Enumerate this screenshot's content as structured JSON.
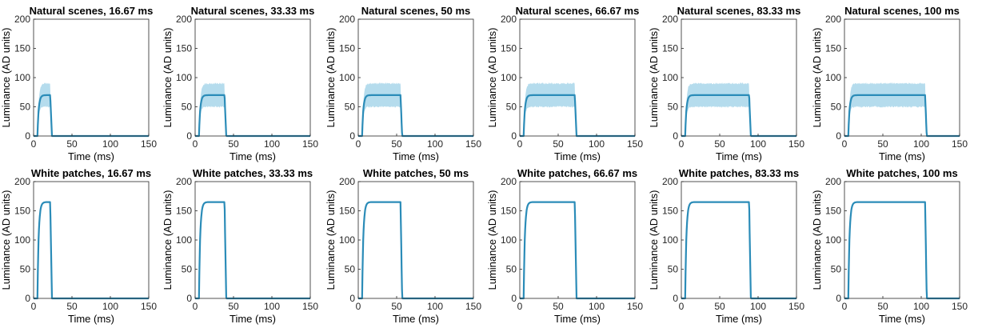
{
  "colors": {
    "line": "#2b8cb8",
    "band": "#a8d6ea",
    "axis": "#262626"
  },
  "chart_data": [
    {
      "type": "line",
      "title": "Natural scenes, 16.67 ms",
      "xlabel": "Time (ms)",
      "ylabel": "Luminance (AD units)",
      "xlim": [
        0,
        150
      ],
      "ylim": [
        0,
        200
      ],
      "xticks": [
        "0",
        "50",
        "100",
        "150"
      ],
      "yticks": [
        "0",
        "50",
        "100",
        "150",
        "200"
      ],
      "grid": false,
      "onset": 5,
      "duration": 16.67,
      "plateau": 70,
      "band": [
        50,
        90
      ],
      "shaded_band": true
    },
    {
      "type": "line",
      "title": "Natural scenes, 33.33 ms",
      "xlabel": "Time (ms)",
      "ylabel": "Luminance (AD units)",
      "xlim": [
        0,
        150
      ],
      "ylim": [
        0,
        200
      ],
      "xticks": [
        "0",
        "50",
        "100",
        "150"
      ],
      "yticks": [
        "0",
        "50",
        "100",
        "150",
        "200"
      ],
      "grid": false,
      "onset": 5,
      "duration": 33.33,
      "plateau": 70,
      "band": [
        50,
        90
      ],
      "shaded_band": true
    },
    {
      "type": "line",
      "title": "Natural scenes, 50 ms",
      "xlabel": "Time (ms)",
      "ylabel": "Luminance (AD units)",
      "xlim": [
        0,
        150
      ],
      "ylim": [
        0,
        200
      ],
      "xticks": [
        "0",
        "50",
        "100",
        "150"
      ],
      "yticks": [
        "0",
        "50",
        "100",
        "150",
        "200"
      ],
      "grid": false,
      "onset": 5,
      "duration": 50,
      "plateau": 70,
      "band": [
        50,
        90
      ],
      "shaded_band": true
    },
    {
      "type": "line",
      "title": "Natural scenes, 66.67 ms",
      "xlabel": "Time (ms)",
      "ylabel": "Luminance (AD units)",
      "xlim": [
        0,
        150
      ],
      "ylim": [
        0,
        200
      ],
      "xticks": [
        "0",
        "50",
        "100",
        "150"
      ],
      "yticks": [
        "0",
        "50",
        "100",
        "150",
        "200"
      ],
      "grid": false,
      "onset": 5,
      "duration": 66.67,
      "plateau": 70,
      "band": [
        50,
        90
      ],
      "shaded_band": true
    },
    {
      "type": "line",
      "title": "Natural scenes, 83.33 ms",
      "xlabel": "Time (ms)",
      "ylabel": "Luminance (AD units)",
      "xlim": [
        0,
        150
      ],
      "ylim": [
        0,
        200
      ],
      "xticks": [
        "0",
        "50",
        "100",
        "150"
      ],
      "yticks": [
        "0",
        "50",
        "100",
        "150",
        "200"
      ],
      "grid": false,
      "onset": 5,
      "duration": 83.33,
      "plateau": 70,
      "band": [
        50,
        90
      ],
      "shaded_band": true
    },
    {
      "type": "line",
      "title": "Natural scenes, 100 ms",
      "xlabel": "Time (ms)",
      "ylabel": "Luminance (AD units)",
      "xlim": [
        0,
        150
      ],
      "ylim": [
        0,
        200
      ],
      "xticks": [
        "0",
        "50",
        "100",
        "150"
      ],
      "yticks": [
        "0",
        "50",
        "100",
        "150",
        "200"
      ],
      "grid": false,
      "onset": 5,
      "duration": 100,
      "plateau": 70,
      "band": [
        50,
        90
      ],
      "shaded_band": true
    },
    {
      "type": "line",
      "title": "White patches, 16.67 ms",
      "xlabel": "Time (ms)",
      "ylabel": "Luminance (AD units)",
      "xlim": [
        0,
        150
      ],
      "ylim": [
        0,
        200
      ],
      "xticks": [
        "0",
        "50",
        "100",
        "150"
      ],
      "yticks": [
        "0",
        "50",
        "100",
        "150",
        "200"
      ],
      "grid": false,
      "onset": 5,
      "duration": 16.67,
      "plateau": 165,
      "shaded_band": false
    },
    {
      "type": "line",
      "title": "White patches, 33.33 ms",
      "xlabel": "Time (ms)",
      "ylabel": "Luminance (AD units)",
      "xlim": [
        0,
        150
      ],
      "ylim": [
        0,
        200
      ],
      "xticks": [
        "0",
        "50",
        "100",
        "150"
      ],
      "yticks": [
        "0",
        "50",
        "100",
        "150",
        "200"
      ],
      "grid": false,
      "onset": 5,
      "duration": 33.33,
      "plateau": 165,
      "shaded_band": false
    },
    {
      "type": "line",
      "title": "White patches, 50 ms",
      "xlabel": "Time (ms)",
      "ylabel": "Luminance (AD units)",
      "xlim": [
        0,
        150
      ],
      "ylim": [
        0,
        200
      ],
      "xticks": [
        "0",
        "50",
        "100",
        "150"
      ],
      "yticks": [
        "0",
        "50",
        "100",
        "150",
        "200"
      ],
      "grid": false,
      "onset": 5,
      "duration": 50,
      "plateau": 165,
      "shaded_band": false
    },
    {
      "type": "line",
      "title": "White patches, 66.67 ms",
      "xlabel": "Time (ms)",
      "ylabel": "Luminance (AD units)",
      "xlim": [
        0,
        150
      ],
      "ylim": [
        0,
        200
      ],
      "xticks": [
        "0",
        "50",
        "100",
        "150"
      ],
      "yticks": [
        "0",
        "50",
        "100",
        "150",
        "200"
      ],
      "grid": false,
      "onset": 5,
      "duration": 66.67,
      "plateau": 165,
      "shaded_band": false
    },
    {
      "type": "line",
      "title": "White patches, 83.33 ms",
      "xlabel": "Time (ms)",
      "ylabel": "Luminance (AD units)",
      "xlim": [
        0,
        150
      ],
      "ylim": [
        0,
        200
      ],
      "xticks": [
        "0",
        "50",
        "100",
        "150"
      ],
      "yticks": [
        "0",
        "50",
        "100",
        "150",
        "200"
      ],
      "grid": false,
      "onset": 5,
      "duration": 83.33,
      "plateau": 165,
      "shaded_band": false
    },
    {
      "type": "line",
      "title": "White patches, 100 ms",
      "xlabel": "Time (ms)",
      "ylabel": "Luminance (AD units)",
      "xlim": [
        0,
        150
      ],
      "ylim": [
        0,
        200
      ],
      "xticks": [
        "0",
        "50",
        "100",
        "150"
      ],
      "yticks": [
        "0",
        "50",
        "100",
        "150",
        "200"
      ],
      "grid": false,
      "onset": 5,
      "duration": 100,
      "plateau": 165,
      "shaded_band": false
    }
  ]
}
